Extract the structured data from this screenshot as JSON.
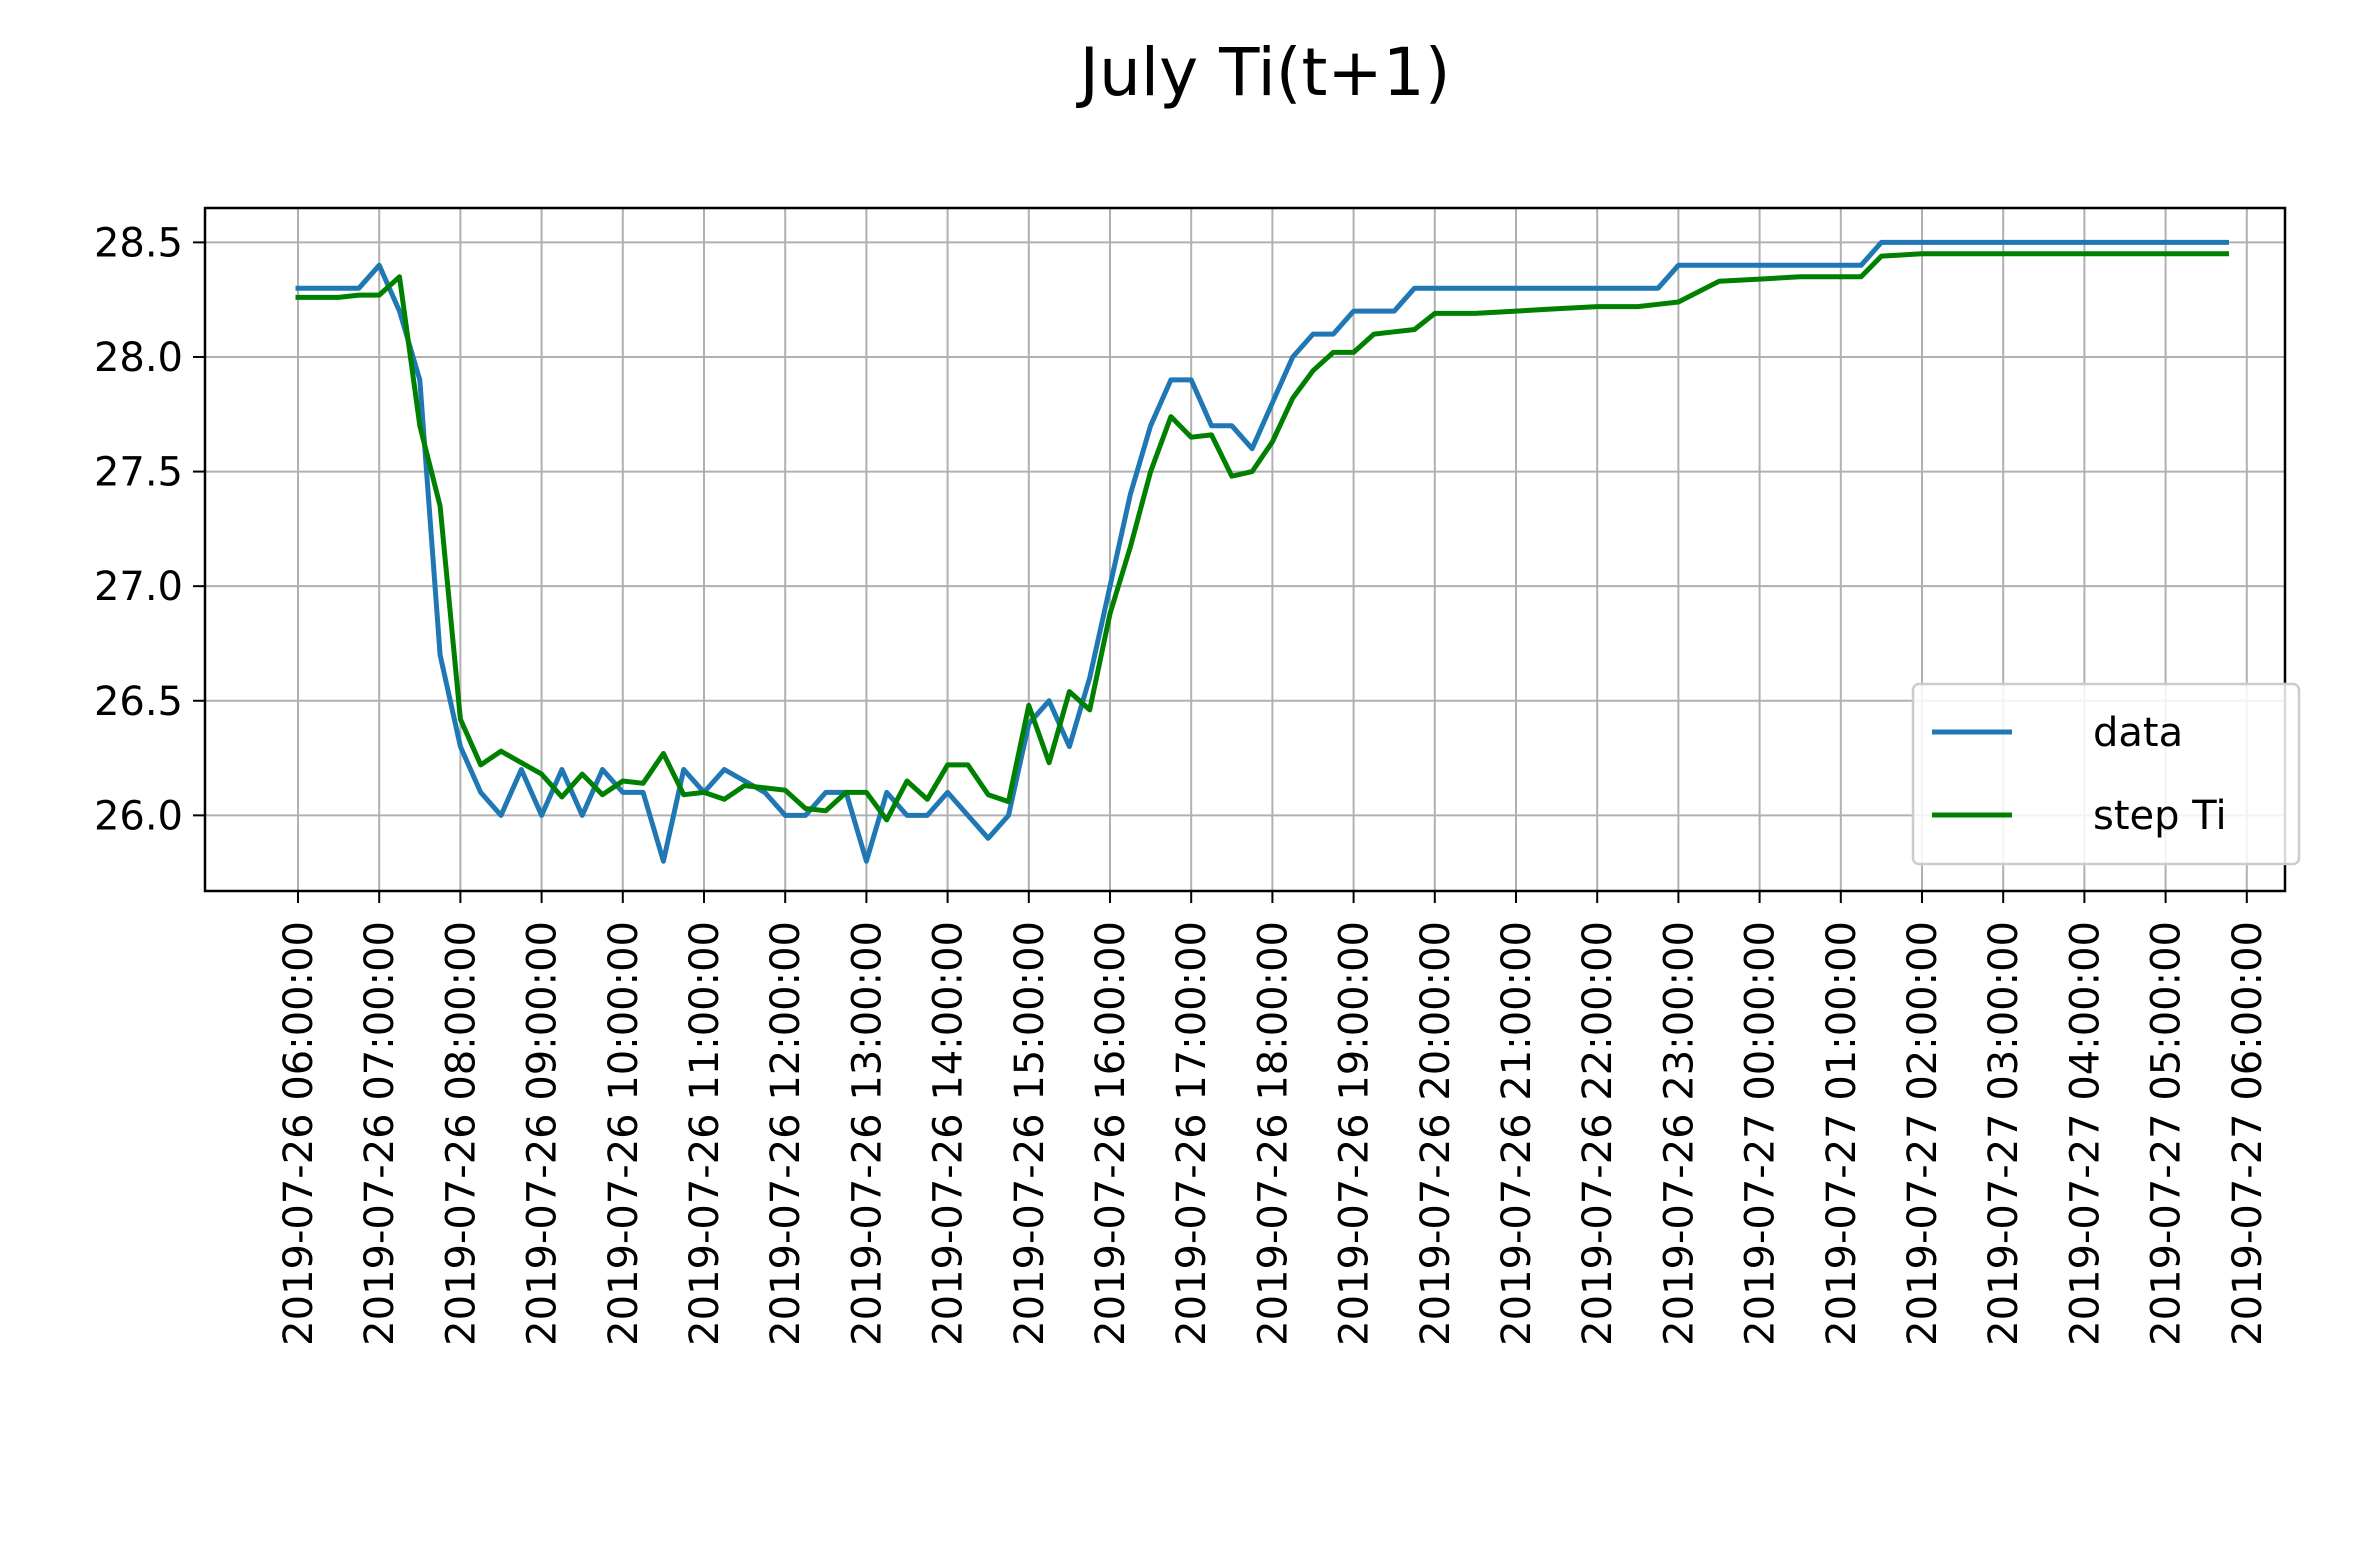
{
  "chart_data": {
    "type": "line",
    "title": "July Ti(t+1)",
    "xlabel": "",
    "ylabel": "",
    "x_ticks": [
      "2019-07-26 06:00:00",
      "2019-07-26 07:00:00",
      "2019-07-26 08:00:00",
      "2019-07-26 09:00:00",
      "2019-07-26 10:00:00",
      "2019-07-26 11:00:00",
      "2019-07-26 12:00:00",
      "2019-07-26 13:00:00",
      "2019-07-26 14:00:00",
      "2019-07-26 15:00:00",
      "2019-07-26 16:00:00",
      "2019-07-26 17:00:00",
      "2019-07-26 18:00:00",
      "2019-07-26 19:00:00",
      "2019-07-26 20:00:00",
      "2019-07-26 21:00:00",
      "2019-07-26 22:00:00",
      "2019-07-26 23:00:00",
      "2019-07-27 00:00:00",
      "2019-07-27 01:00:00",
      "2019-07-27 02:00:00",
      "2019-07-27 03:00:00",
      "2019-07-27 04:00:00",
      "2019-07-27 05:00:00",
      "2019-07-27 06:00:00"
    ],
    "y_ticks": [
      "26.0",
      "26.5",
      "27.0",
      "27.5",
      "28.0",
      "28.5"
    ],
    "ylim": [
      25.67,
      28.65
    ],
    "grid": true,
    "legend_position": "lower-right",
    "series": [
      {
        "name": "data",
        "color": "#1f77b4",
        "x": [
          "2019-07-26 06:00:00",
          "2019-07-26 06:15:00",
          "2019-07-26 06:30:00",
          "2019-07-26 06:45:00",
          "2019-07-26 07:00:00",
          "2019-07-26 07:15:00",
          "2019-07-26 07:30:00",
          "2019-07-26 07:45:00",
          "2019-07-26 08:00:00",
          "2019-07-26 08:15:00",
          "2019-07-26 08:30:00",
          "2019-07-26 08:45:00",
          "2019-07-26 09:00:00",
          "2019-07-26 09:15:00",
          "2019-07-26 09:30:00",
          "2019-07-26 09:45:00",
          "2019-07-26 10:00:00",
          "2019-07-26 10:15:00",
          "2019-07-26 10:30:00",
          "2019-07-26 10:45:00",
          "2019-07-26 11:00:00",
          "2019-07-26 11:15:00",
          "2019-07-26 11:30:00",
          "2019-07-26 11:45:00",
          "2019-07-26 12:00:00",
          "2019-07-26 12:15:00",
          "2019-07-26 12:30:00",
          "2019-07-26 12:45:00",
          "2019-07-26 13:00:00",
          "2019-07-26 13:15:00",
          "2019-07-26 13:30:00",
          "2019-07-26 13:45:00",
          "2019-07-26 14:00:00",
          "2019-07-26 14:15:00",
          "2019-07-26 14:30:00",
          "2019-07-26 14:45:00",
          "2019-07-26 15:00:00",
          "2019-07-26 15:15:00",
          "2019-07-26 15:30:00",
          "2019-07-26 15:45:00",
          "2019-07-26 16:00:00",
          "2019-07-26 16:15:00",
          "2019-07-26 16:30:00",
          "2019-07-26 16:45:00",
          "2019-07-26 17:00:00",
          "2019-07-26 17:15:00",
          "2019-07-26 17:30:00",
          "2019-07-26 17:45:00",
          "2019-07-26 18:00:00",
          "2019-07-26 18:15:00",
          "2019-07-26 18:30:00",
          "2019-07-26 18:45:00",
          "2019-07-26 19:00:00",
          "2019-07-26 19:15:00",
          "2019-07-26 19:30:00",
          "2019-07-26 19:45:00",
          "2019-07-26 20:00:00",
          "2019-07-26 20:30:00",
          "2019-07-26 21:00:00",
          "2019-07-26 21:30:00",
          "2019-07-26 22:00:00",
          "2019-07-26 22:30:00",
          "2019-07-26 22:45:00",
          "2019-07-26 23:00:00",
          "2019-07-26 23:30:00",
          "2019-07-27 00:00:00",
          "2019-07-27 00:30:00",
          "2019-07-27 01:00:00",
          "2019-07-27 01:15:00",
          "2019-07-27 01:30:00",
          "2019-07-27 02:00:00",
          "2019-07-27 03:00:00",
          "2019-07-27 04:00:00",
          "2019-07-27 05:00:00",
          "2019-07-27 05:45:00"
        ],
        "y": [
          28.3,
          28.3,
          28.3,
          28.3,
          28.4,
          28.2,
          27.9,
          26.7,
          26.3,
          26.1,
          26.0,
          26.2,
          26.0,
          26.2,
          26.0,
          26.2,
          26.1,
          26.1,
          25.8,
          26.2,
          26.1,
          26.2,
          26.15,
          26.1,
          26.0,
          26.0,
          26.1,
          26.1,
          25.8,
          26.1,
          26.0,
          26.0,
          26.1,
          26.0,
          25.9,
          26.0,
          26.4,
          26.5,
          26.3,
          26.6,
          27.0,
          27.4,
          27.7,
          27.9,
          27.9,
          27.7,
          27.7,
          27.6,
          27.8,
          28.0,
          28.1,
          28.1,
          28.2,
          28.2,
          28.2,
          28.3,
          28.3,
          28.3,
          28.3,
          28.3,
          28.3,
          28.3,
          28.3,
          28.4,
          28.4,
          28.4,
          28.4,
          28.4,
          28.4,
          28.5,
          28.5,
          28.5,
          28.5,
          28.5,
          28.5
        ]
      },
      {
        "name": "step Ti",
        "color": "#008000",
        "x": [
          "2019-07-26 06:00:00",
          "2019-07-26 06:15:00",
          "2019-07-26 06:30:00",
          "2019-07-26 06:45:00",
          "2019-07-26 07:00:00",
          "2019-07-26 07:15:00",
          "2019-07-26 07:30:00",
          "2019-07-26 07:45:00",
          "2019-07-26 08:00:00",
          "2019-07-26 08:15:00",
          "2019-07-26 08:30:00",
          "2019-07-26 08:45:00",
          "2019-07-26 09:00:00",
          "2019-07-26 09:15:00",
          "2019-07-26 09:30:00",
          "2019-07-26 09:45:00",
          "2019-07-26 10:00:00",
          "2019-07-26 10:15:00",
          "2019-07-26 10:30:00",
          "2019-07-26 10:45:00",
          "2019-07-26 11:00:00",
          "2019-07-26 11:15:00",
          "2019-07-26 11:30:00",
          "2019-07-26 11:45:00",
          "2019-07-26 12:00:00",
          "2019-07-26 12:15:00",
          "2019-07-26 12:30:00",
          "2019-07-26 12:45:00",
          "2019-07-26 13:00:00",
          "2019-07-26 13:15:00",
          "2019-07-26 13:30:00",
          "2019-07-26 13:45:00",
          "2019-07-26 14:00:00",
          "2019-07-26 14:15:00",
          "2019-07-26 14:30:00",
          "2019-07-26 14:45:00",
          "2019-07-26 15:00:00",
          "2019-07-26 15:15:00",
          "2019-07-26 15:30:00",
          "2019-07-26 15:45:00",
          "2019-07-26 16:00:00",
          "2019-07-26 16:15:00",
          "2019-07-26 16:30:00",
          "2019-07-26 16:45:00",
          "2019-07-26 17:00:00",
          "2019-07-26 17:15:00",
          "2019-07-26 17:30:00",
          "2019-07-26 17:45:00",
          "2019-07-26 18:00:00",
          "2019-07-26 18:15:00",
          "2019-07-26 18:30:00",
          "2019-07-26 18:45:00",
          "2019-07-26 19:00:00",
          "2019-07-26 19:15:00",
          "2019-07-26 19:30:00",
          "2019-07-26 19:45:00",
          "2019-07-26 20:00:00",
          "2019-07-26 20:30:00",
          "2019-07-26 21:00:00",
          "2019-07-26 21:30:00",
          "2019-07-26 22:00:00",
          "2019-07-26 22:30:00",
          "2019-07-26 22:45:00",
          "2019-07-26 23:00:00",
          "2019-07-26 23:30:00",
          "2019-07-27 00:00:00",
          "2019-07-27 00:30:00",
          "2019-07-27 01:00:00",
          "2019-07-27 01:15:00",
          "2019-07-27 01:30:00",
          "2019-07-27 02:00:00",
          "2019-07-27 03:00:00",
          "2019-07-27 04:00:00",
          "2019-07-27 05:00:00",
          "2019-07-27 05:45:00"
        ],
        "y": [
          28.26,
          28.26,
          28.26,
          28.27,
          28.27,
          28.35,
          27.7,
          27.35,
          26.42,
          26.22,
          26.28,
          26.23,
          26.18,
          26.08,
          26.18,
          26.09,
          26.15,
          26.14,
          26.27,
          26.09,
          26.1,
          26.07,
          26.13,
          26.12,
          26.11,
          26.03,
          26.02,
          26.1,
          26.1,
          25.98,
          26.15,
          26.07,
          26.22,
          26.22,
          26.09,
          26.06,
          26.48,
          26.23,
          26.54,
          26.46,
          26.88,
          27.17,
          27.5,
          27.74,
          27.65,
          27.66,
          27.48,
          27.5,
          27.63,
          27.82,
          27.94,
          28.02,
          28.02,
          28.1,
          28.11,
          28.12,
          28.19,
          28.19,
          28.2,
          28.21,
          28.22,
          28.22,
          28.23,
          28.24,
          28.33,
          28.34,
          28.35,
          28.35,
          28.35,
          28.44,
          28.45,
          28.45,
          28.45,
          28.45,
          28.45
        ]
      }
    ]
  }
}
